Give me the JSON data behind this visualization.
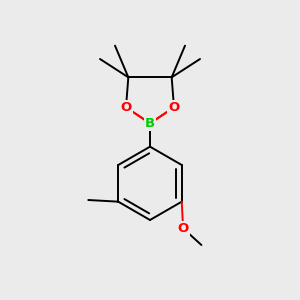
{
  "background_color": "#ebebeb",
  "bond_color": "#000000",
  "O_color": "#ff0000",
  "B_color": "#00cc00",
  "bond_width": 1.4,
  "figsize": [
    3.0,
    3.0
  ],
  "dpi": 100,
  "xlim": [
    0.15,
    0.85
  ],
  "ylim": [
    0.05,
    0.95
  ]
}
